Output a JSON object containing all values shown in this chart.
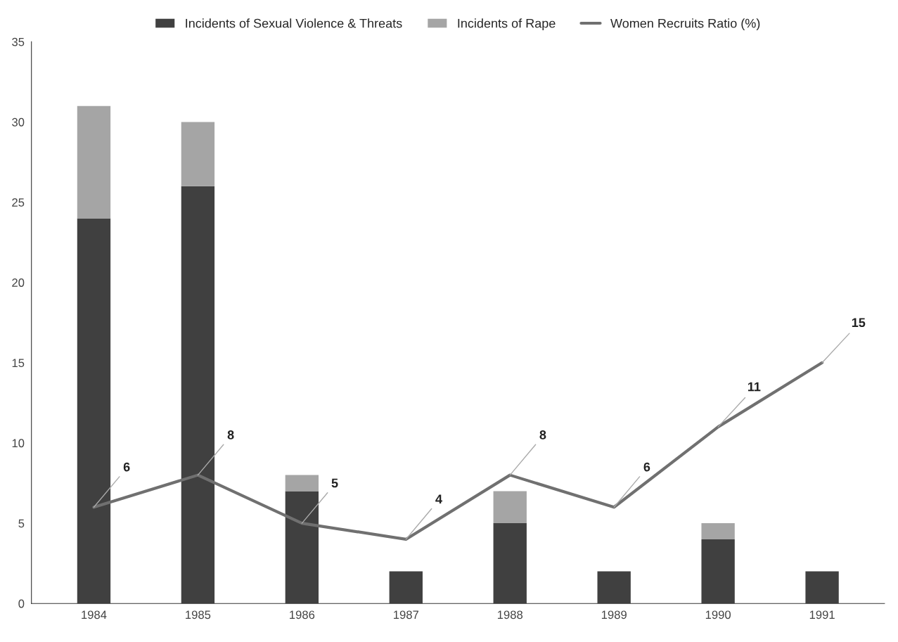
{
  "chart_data": {
    "type": "bar",
    "stacked": true,
    "categories": [
      "1984",
      "1985",
      "1986",
      "1987",
      "1988",
      "1989",
      "1990",
      "1991"
    ],
    "series": [
      {
        "name": "Incidents of Sexual Violence & Threats",
        "color": "#404040",
        "values": [
          24,
          26,
          7,
          2,
          5,
          2,
          4,
          2
        ]
      },
      {
        "name": "Incidents of Rape",
        "color": "#a5a5a5",
        "values": [
          7,
          4,
          1,
          null,
          2,
          null,
          1,
          null
        ]
      },
      {
        "name": "Women Recruits Ratio (%)",
        "type": "line",
        "color": "#707070",
        "values": [
          6,
          8,
          5,
          4,
          8,
          6,
          11,
          15
        ],
        "value_labels": [
          "6",
          "8",
          "5",
          "4",
          "8",
          "6",
          "11",
          "15"
        ]
      }
    ],
    "ylim": [
      0,
      35
    ],
    "yticks": [
      0,
      5,
      10,
      15,
      20,
      25,
      30,
      35
    ],
    "grid": false,
    "legend": "top",
    "marker": "none",
    "line_style": "solid"
  }
}
